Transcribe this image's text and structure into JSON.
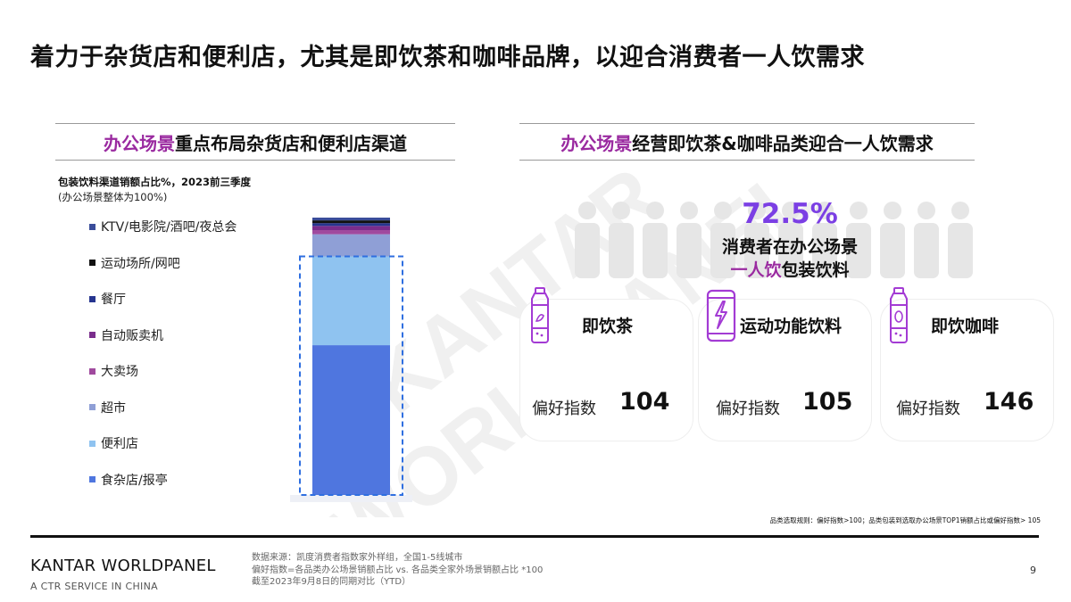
{
  "page": {
    "title": "着力于杂货店和便利店，尤其是即饮茶和咖啡品牌，以迎合消费者一人饮需求",
    "page_number": "9"
  },
  "watermark": {
    "line1": "KANTAR",
    "line2": "WORLDPANEL"
  },
  "left_section": {
    "highlight": "办公场景",
    "rest": "重点布局杂货店和便利店渠道"
  },
  "right_section": {
    "highlight": "办公场景",
    "rest": "经营即饮茶&咖啡品类迎合一人饮需求"
  },
  "chart_data": {
    "type": "bar",
    "stacked": true,
    "title": "包装饮料渠道销额占比%，2023前三季度",
    "subtitle": "(办公场景整体为100%)",
    "categories": [
      ""
    ],
    "series": [
      {
        "name": "KTV/电影院/酒吧/夜总会",
        "values": [
          1
        ],
        "color": "#3a4d9a"
      },
      {
        "name": "运动场所/网吧",
        "values": [
          1
        ],
        "color": "#111111"
      },
      {
        "name": "餐厅",
        "values": [
          1
        ],
        "color": "#26358f"
      },
      {
        "name": "自动贩卖机",
        "values": [
          1.5
        ],
        "color": "#7a2d8c"
      },
      {
        "name": "大卖场",
        "values": [
          1.5
        ],
        "color": "#a04a9e"
      },
      {
        "name": "超市",
        "values": [
          8
        ],
        "color": "#8f9fd6"
      },
      {
        "name": "便利店",
        "values": [
          32
        ],
        "color": "#8fc3f0"
      },
      {
        "name": "食杂店/报亭",
        "values": [
          54
        ],
        "color": "#4f76df"
      }
    ],
    "ylim": [
      0,
      100
    ],
    "highlight": [
      "便利店",
      "食杂店/报亭"
    ]
  },
  "stat": {
    "value": "72.5%",
    "line1": "消费者在办公场景",
    "line2_highlight": "一人饮",
    "line2_rest": "包装饮料"
  },
  "cards": [
    {
      "name": "即饮茶",
      "icon": "tea-bottle-icon",
      "index_label": "偏好指数",
      "index_value": "104"
    },
    {
      "name": "运动功能饮料",
      "icon": "energy-can-icon",
      "index_label": "偏好指数",
      "index_value": "105"
    },
    {
      "name": "即饮咖啡",
      "icon": "coffee-bottle-icon",
      "index_label": "偏好指数",
      "index_value": "146"
    }
  ],
  "footnote": "品类选取规则：偏好指数>100；品类包装到选取办公场景TOP1销额占比或偏好指数> 105",
  "footer": {
    "brand": "KANTAR WORLDPANEL",
    "brand_sub": "A CTR SERVICE IN CHINA",
    "source_line1": "数据来源：凯度消费者指数家外样组，全国1-5线城市",
    "source_line2": "偏好指数=各品类办公场景销额占比 vs. 各品类全家外场景销额占比 *100",
    "source_line3": "截至2023年9月8日的同期对比（YTD）"
  },
  "colors": {
    "accent_purple": "#9a2aa0",
    "stat_purple": "#7b3fe4"
  }
}
